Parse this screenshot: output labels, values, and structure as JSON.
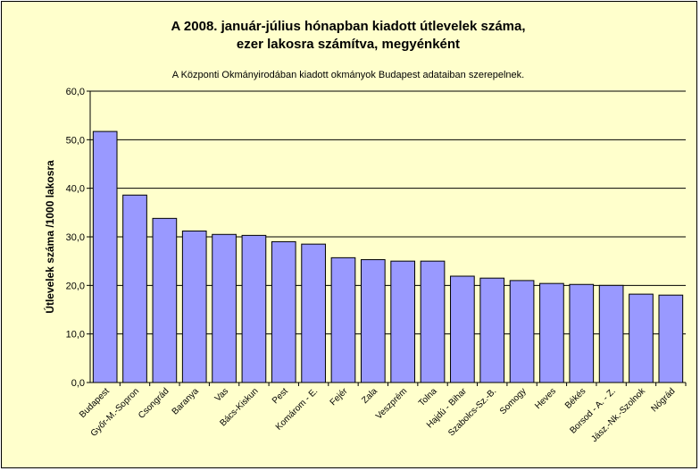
{
  "chart_data": {
    "type": "bar",
    "title_line1": "A 2008. január-július hónapban kiadott útlevelek száma,",
    "title_line2": "ezer lakosra számítva, megyénként",
    "subtitle": "A Központi Okmányirodában kiadott okmányok Budapest adataiban szerepelnek.",
    "xlabel": "",
    "ylabel": "Útlevelek száma /1000 lakosra",
    "ylim": [
      0,
      60
    ],
    "yticks": [
      "0,0",
      "10,0",
      "20,0",
      "30,0",
      "40,0",
      "50,0",
      "60,0"
    ],
    "grid": true,
    "categories": [
      "Budapest",
      "Győr-M.-Sopron",
      "Csongrád",
      "Baranya",
      "Vas",
      "Bács-Kiskun",
      "Pest",
      "Komárom - E.",
      "Fejér",
      "Zala",
      "Veszprém",
      "Tolna",
      "Hajdú - Bihar",
      "Szabolcs-Sz.-B.",
      "Somogy",
      "Heves",
      "Békés",
      "Borsod - A. - Z.",
      "Jász.-Nk.-Szolnok",
      "Nógrád"
    ],
    "values": [
      51.7,
      38.6,
      33.8,
      31.2,
      30.5,
      30.3,
      29.0,
      28.5,
      25.7,
      25.3,
      25.0,
      25.0,
      21.9,
      21.5,
      21.0,
      20.4,
      20.2,
      20.0,
      18.2,
      18.0
    ],
    "colors": {
      "bar": "#9999ff",
      "bar_border": "#000000",
      "background": "#ffffcc",
      "grid": "#000000"
    }
  }
}
